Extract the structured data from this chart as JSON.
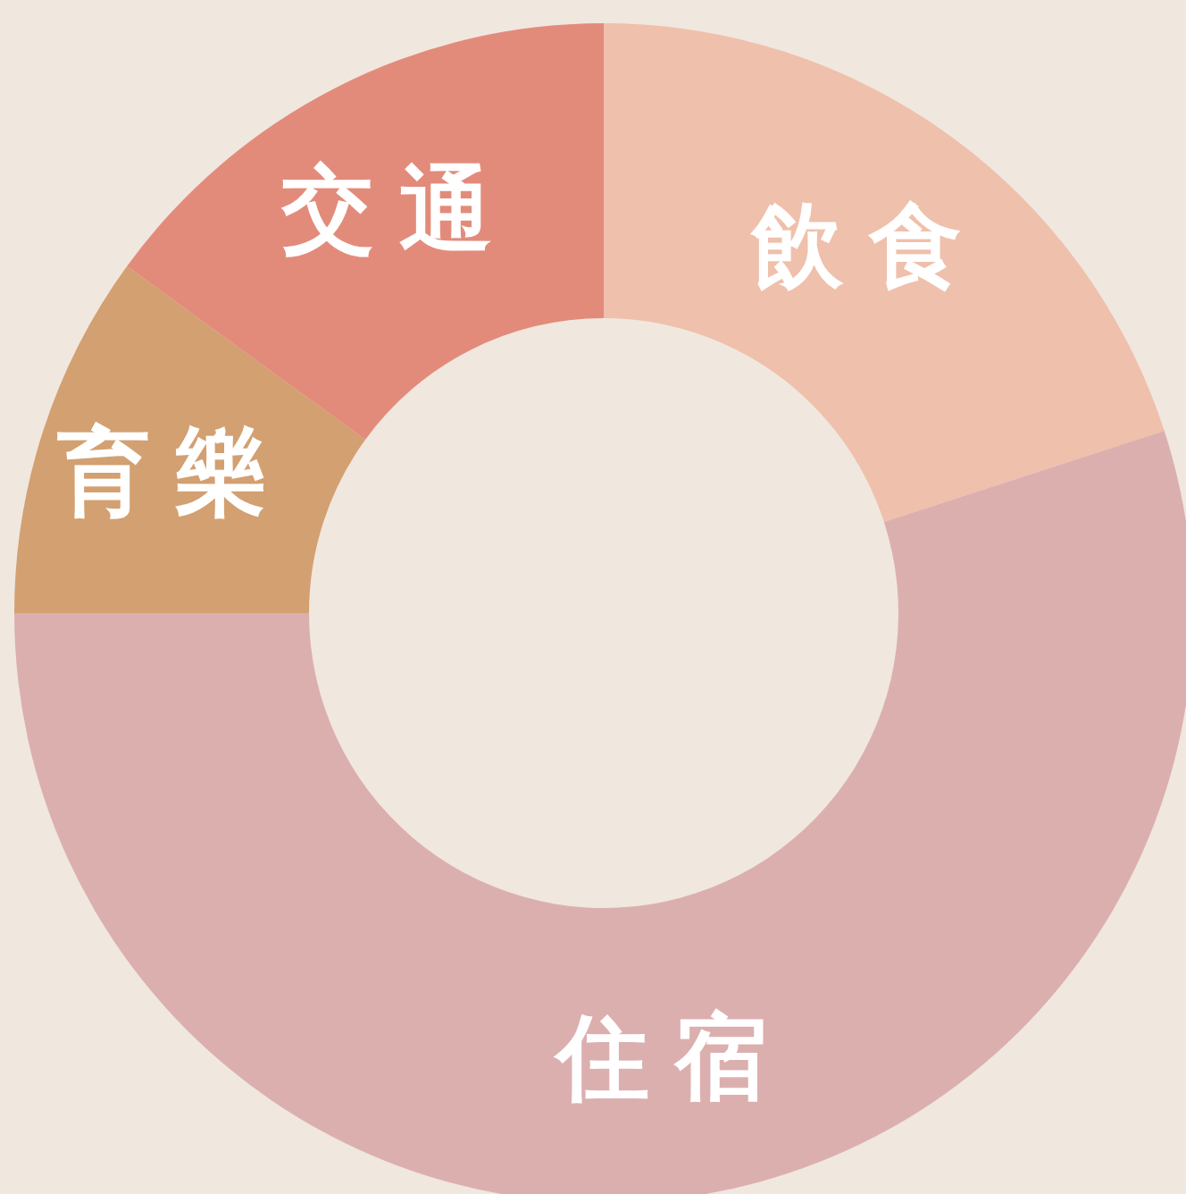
{
  "chart_data": {
    "type": "donut",
    "categories": [
      "飲食",
      "住宿",
      "育樂",
      "交通"
    ],
    "values": [
      20,
      55,
      10,
      15
    ],
    "colors": [
      "#efc0ab",
      "#dcafaf",
      "#d3a071",
      "#e38b7b"
    ]
  }
}
